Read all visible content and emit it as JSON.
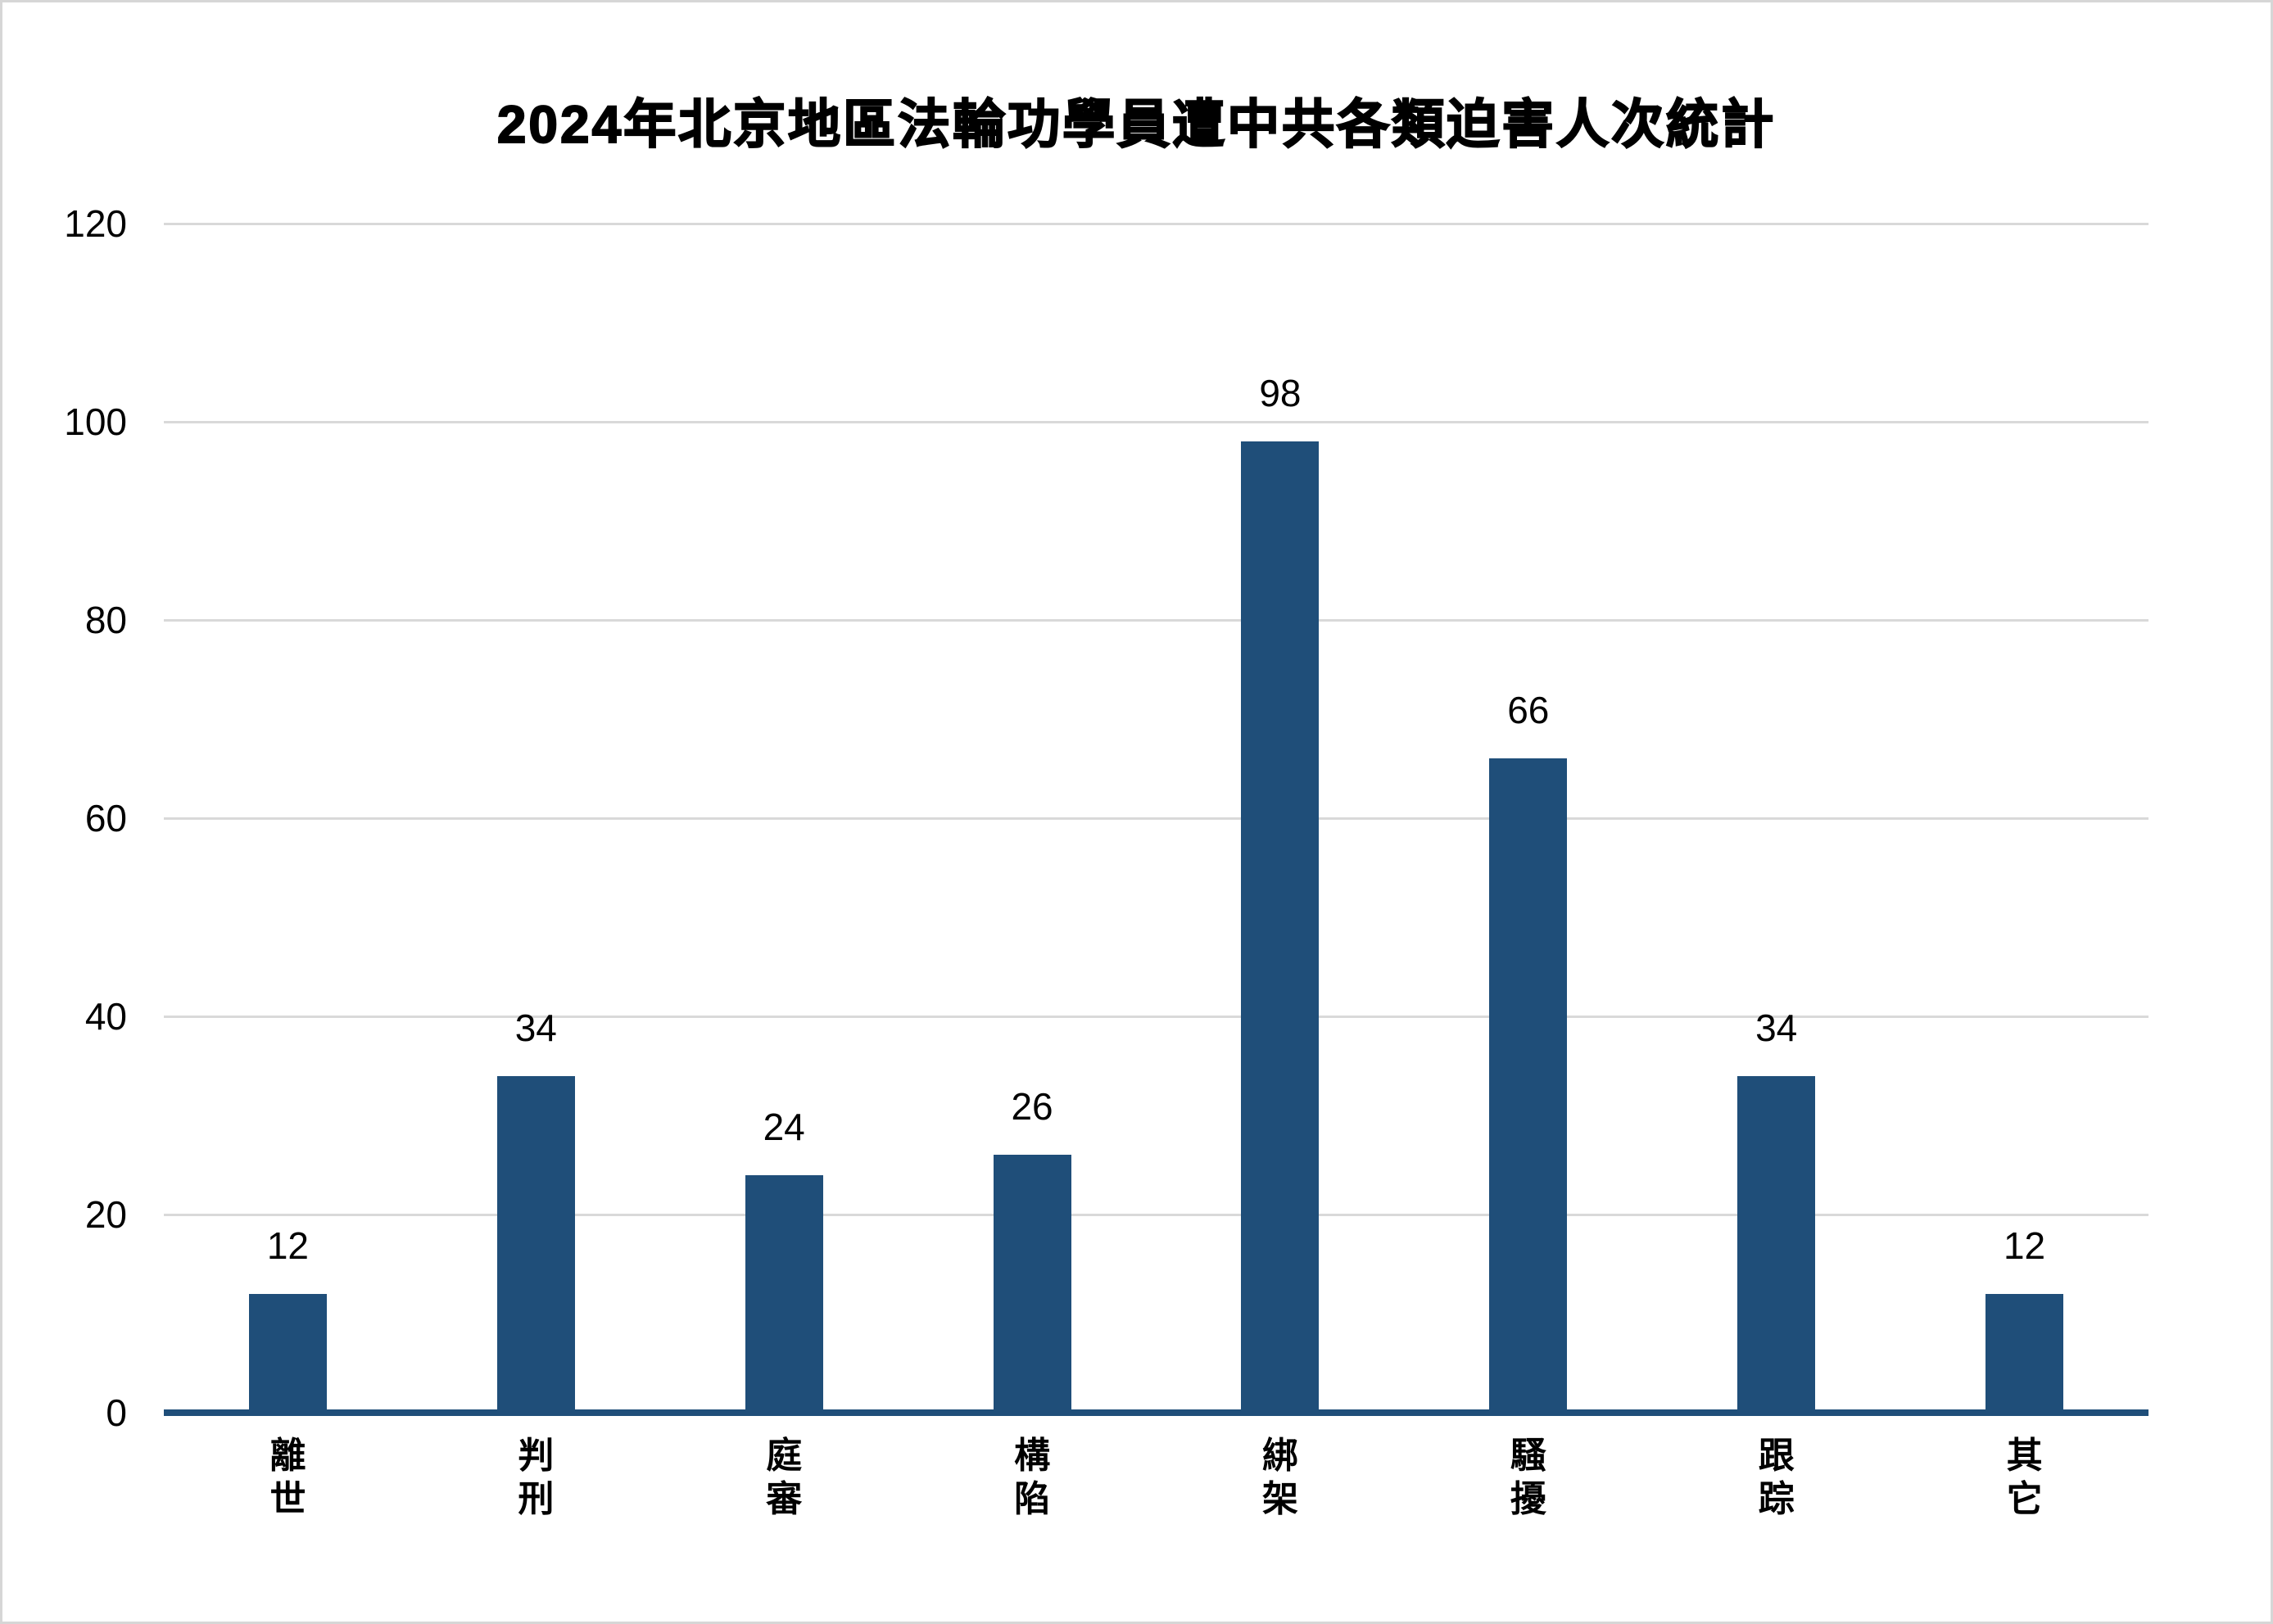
{
  "chart_data": {
    "type": "bar",
    "title": "2024年北京地區法輪功學員遭中共各類迫害人次統計",
    "categories": [
      "離世",
      "判刑",
      "庭審",
      "構陷",
      "綁架",
      "騷擾",
      "跟踪",
      "其它"
    ],
    "values": [
      12,
      34,
      24,
      26,
      98,
      66,
      34,
      12
    ],
    "data_labels": [
      "12",
      "34",
      "24",
      "26",
      "98",
      "66",
      "34",
      "12"
    ],
    "xlabel": "",
    "ylabel": "",
    "ylim": [
      0,
      120
    ],
    "y_ticks": [
      0,
      20,
      40,
      60,
      80,
      100,
      120
    ],
    "grid": true,
    "legend_position": "none",
    "colors": {
      "bar": "#1F4E79",
      "axis_line": "#1F4E79",
      "gridline": "#D9D9D9",
      "text": "#000000",
      "canvas_border": "#D6D6D6",
      "background": "#FFFFFF"
    }
  }
}
